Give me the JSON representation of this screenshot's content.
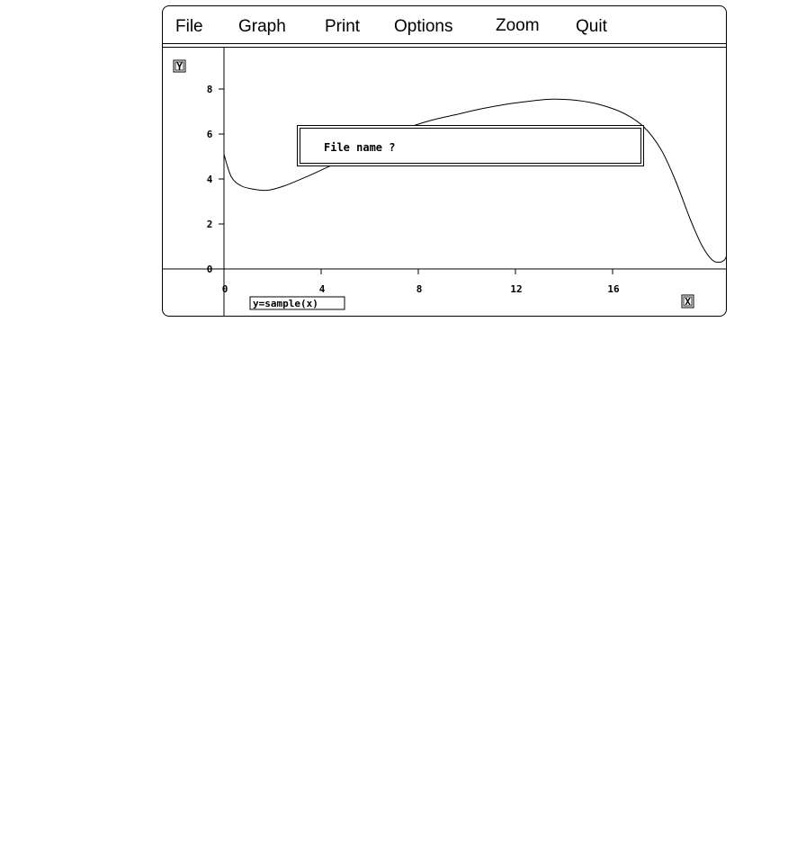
{
  "menu": {
    "items": [
      {
        "id": "file",
        "label": "File"
      },
      {
        "id": "graph",
        "label": "Graph"
      },
      {
        "id": "print",
        "label": "Print"
      },
      {
        "id": "options",
        "label": "Options"
      },
      {
        "id": "zoom",
        "label": "Zoom"
      },
      {
        "id": "quit",
        "label": "Quit"
      }
    ]
  },
  "plot": {
    "y_axis_label": "Y",
    "x_axis_label": "X",
    "function_label": "y=sample(x)"
  },
  "dialog": {
    "prompt": "File name ?",
    "value": ""
  },
  "chart_data": {
    "type": "line",
    "title": "",
    "xlabel": "X",
    "ylabel": "Y",
    "xlim": [
      -2.5,
      20.8
    ],
    "ylim": [
      -2.0,
      9.6
    ],
    "x_ticks": [
      0,
      4,
      8,
      12,
      16
    ],
    "y_ticks": [
      0,
      2,
      4,
      6,
      8
    ],
    "grid": false,
    "series": [
      {
        "name": "y=sample(x)",
        "x": [
          0,
          0.3,
          0.7,
          1.2,
          1.8,
          2.5,
          3.5,
          4.5,
          5.5,
          6.5,
          7.5,
          8.5,
          9.5,
          10.5,
          11.5,
          12.5,
          13.5,
          14.5,
          15.5,
          16.5,
          17.3,
          18.0,
          18.6,
          19.2,
          19.7,
          20.1,
          20.4,
          20.6,
          20.7
        ],
        "y": [
          5.1,
          4.1,
          3.7,
          3.55,
          3.5,
          3.7,
          4.15,
          4.65,
          5.2,
          5.75,
          6.25,
          6.6,
          6.85,
          7.1,
          7.3,
          7.45,
          7.55,
          7.5,
          7.3,
          6.9,
          6.3,
          5.3,
          3.9,
          2.2,
          1.0,
          0.4,
          0.3,
          0.4,
          0.6
        ]
      }
    ]
  }
}
